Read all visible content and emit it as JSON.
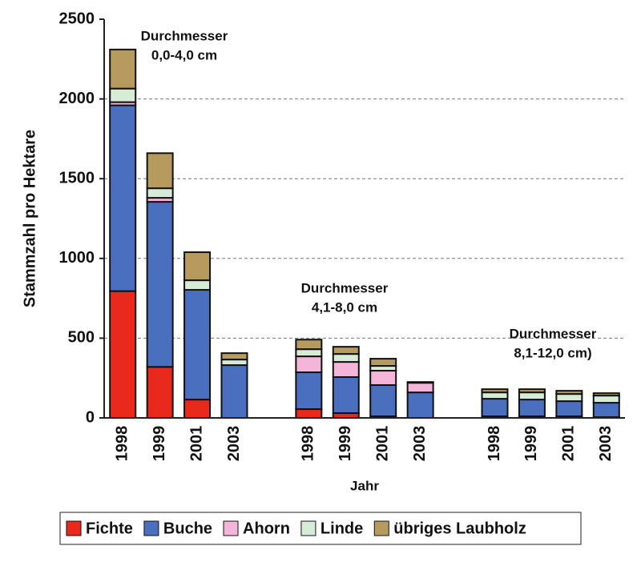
{
  "chart_data": {
    "type": "stacked_bar",
    "y_label": "Stammzahl pro Hektare",
    "x_label": "Jahr",
    "categories": [
      "1998",
      "1999",
      "2001",
      "2003",
      null,
      "1998",
      "1999",
      "2001",
      "2003",
      null,
      "1998",
      "1999",
      "2001",
      "2003"
    ],
    "series": [
      {
        "name": "Fichte",
        "color": "#e8291c",
        "values": [
          795,
          320,
          115,
          0,
          null,
          55,
          30,
          10,
          0,
          null,
          10,
          10,
          10,
          5
        ]
      },
      {
        "name": "Buche",
        "color": "#4a6fbf",
        "values": [
          1165,
          1035,
          688,
          331,
          null,
          231,
          226,
          196,
          160,
          null,
          110,
          105,
          95,
          90
        ]
      },
      {
        "name": "Ahorn",
        "color": "#f5b5d9",
        "values": [
          20,
          25,
          0,
          0,
          null,
          100,
          95,
          90,
          60,
          null,
          0,
          0,
          0,
          0
        ]
      },
      {
        "name": "Linde",
        "color": "#d6ecd6",
        "values": [
          85,
          60,
          60,
          35,
          null,
          45,
          50,
          30,
          5,
          null,
          40,
          45,
          45,
          45
        ]
      },
      {
        "name": "übriges Laubholz",
        "color": "#b69a5e",
        "values": [
          245,
          220,
          176,
          40,
          null,
          60,
          45,
          45,
          0,
          null,
          20,
          20,
          20,
          15
        ]
      }
    ],
    "annotations": [
      {
        "lines": [
          "Durchmesser",
          "0,0-4,0 cm"
        ]
      },
      {
        "lines": [
          "Durchmesser",
          "4,1-8,0 cm"
        ]
      },
      {
        "lines": [
          "Durchmesser",
          "8,1-12,0 cm)"
        ]
      }
    ],
    "ylim": [
      0,
      2500
    ],
    "yticks": [
      0,
      500,
      1000,
      1500,
      2000,
      2500
    ],
    "grid": true,
    "legend": "bottom"
  }
}
